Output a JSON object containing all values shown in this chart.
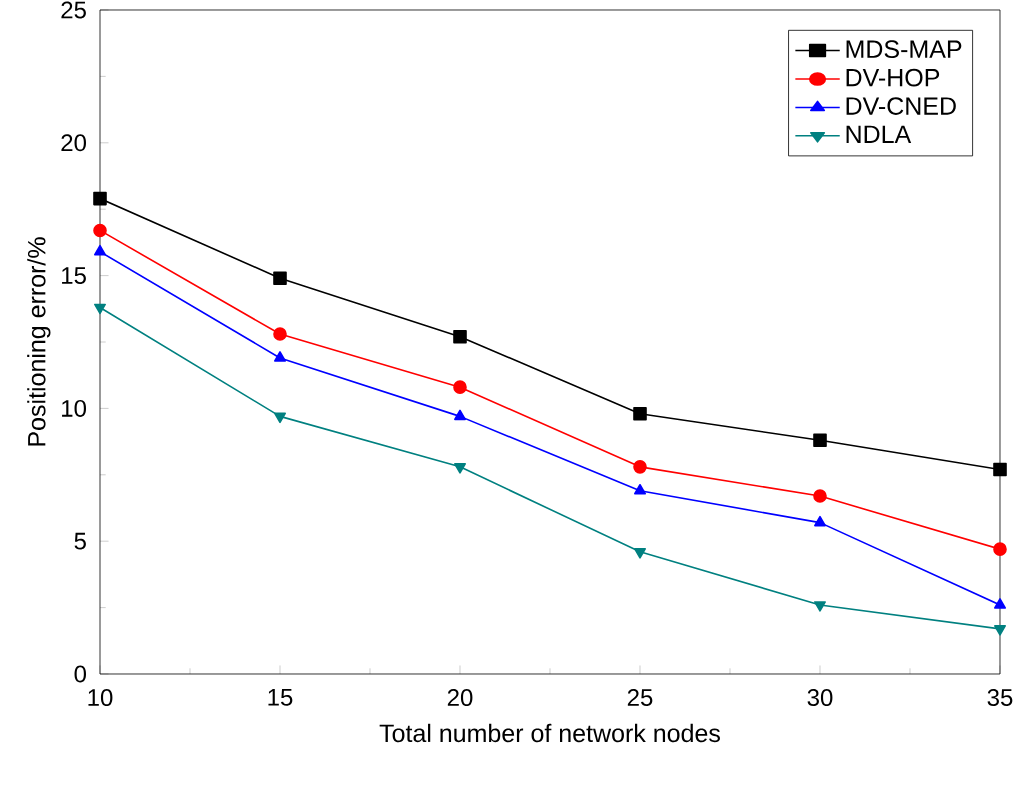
{
  "chart_data": {
    "type": "line",
    "xlabel": "Total number of network nodes",
    "ylabel": "Positioning error/%",
    "x": [
      10,
      15,
      20,
      25,
      30,
      35
    ],
    "xlim": [
      10,
      35
    ],
    "xticks": [
      10,
      15,
      20,
      25,
      30,
      35
    ],
    "ylim": [
      0,
      25
    ],
    "yticks": [
      0,
      5,
      10,
      15,
      20,
      25
    ],
    "grid": false,
    "legend": "top right",
    "line_style": "solid",
    "series": [
      {
        "name": "MDS-MAP",
        "color": "#000000",
        "marker": "square",
        "values": [
          17.9,
          14.9,
          12.7,
          9.8,
          8.8,
          7.7
        ]
      },
      {
        "name": "DV-HOP",
        "color": "#ff0000",
        "marker": "circle",
        "values": [
          16.7,
          12.8,
          10.8,
          7.8,
          6.7,
          4.7
        ]
      },
      {
        "name": "DV-CNED",
        "color": "#0000ff",
        "marker": "triangle",
        "values": [
          15.9,
          11.9,
          9.7,
          6.9,
          5.7,
          2.6
        ]
      },
      {
        "name": "NDLA",
        "color": "#008080",
        "marker": "triangle down",
        "values": [
          13.8,
          9.7,
          7.8,
          4.6,
          2.6,
          1.7
        ]
      }
    ]
  }
}
